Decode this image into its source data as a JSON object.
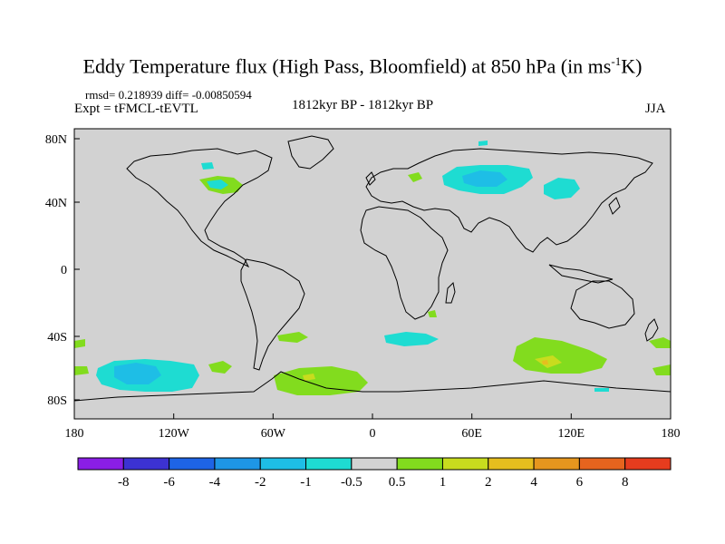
{
  "title": {
    "main": "Eddy Temperature flux (High Pass, Bloomfield) at 850 hPa (in ms",
    "sup": "-1",
    "tail": "K)"
  },
  "stats": "rmsd= 0.218939 diff= -0.00850594",
  "expt": "Expt = tFMCL-tEVTL",
  "period": "1812kyr BP - 1812kyr BP",
  "season": "JJA",
  "axes": {
    "lat_ticks": [
      "80N",
      "40N",
      "0",
      "40S",
      "80S"
    ],
    "lon_ticks": [
      "180",
      "120W",
      "60W",
      "0",
      "60E",
      "120E",
      "180"
    ]
  },
  "colorbar": {
    "labels": [
      "-8",
      "-6",
      "-4",
      "-2",
      "-1",
      "-0.5",
      "0.5",
      "1",
      "2",
      "4",
      "6",
      "8"
    ],
    "colors": [
      "#8a1ee6",
      "#3c32d2",
      "#1e64e6",
      "#1e96e6",
      "#1ebee6",
      "#1edcd2",
      "#d2d2d2",
      "#82dc1e",
      "#c8dc1e",
      "#e6be1e",
      "#e6961e",
      "#e6641e",
      "#e63c1e"
    ]
  },
  "map_colors": {
    "background": "#d2d2d2",
    "neg1": "#1ebee6",
    "neg05": "#1edcd2",
    "pos05": "#82dc1e",
    "pos1": "#c8dc1e",
    "pos2": "#e6be1e"
  }
}
